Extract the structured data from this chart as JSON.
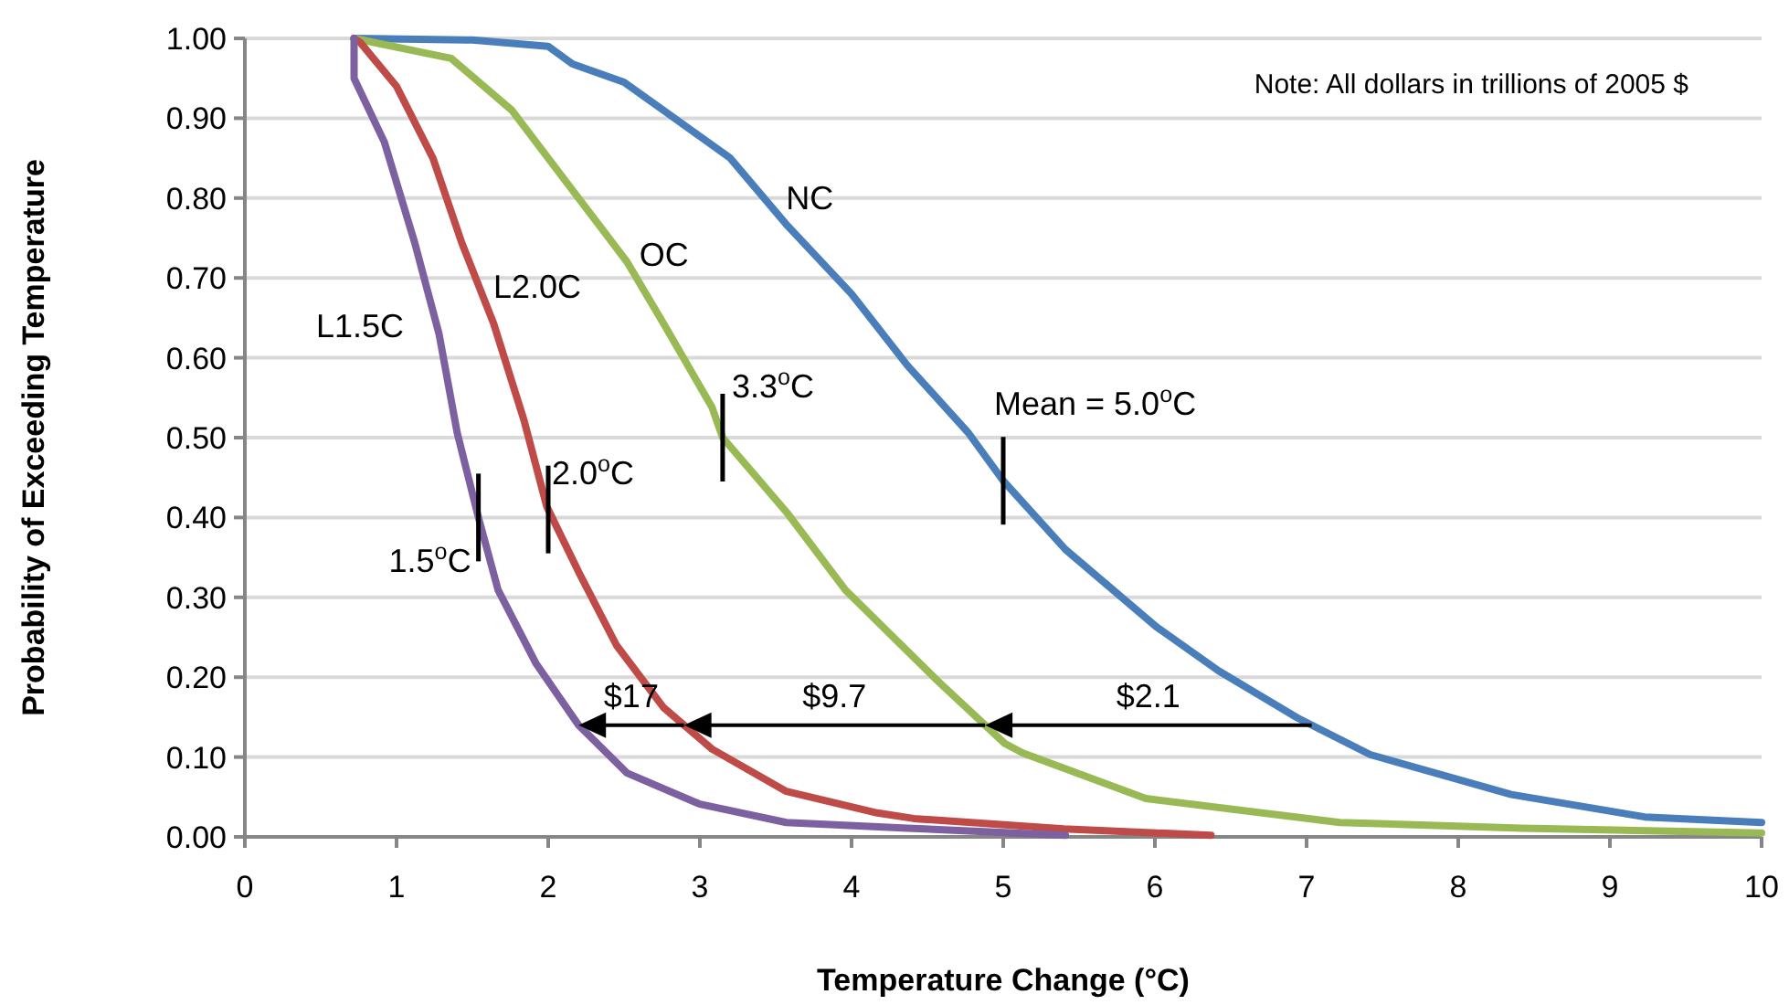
{
  "chart_data": {
    "type": "line",
    "xlabel": "Temperature Change (°C)",
    "ylabel": "Probability of Exceeding Temperature",
    "xlim": [
      0,
      10
    ],
    "ylim": [
      0,
      1
    ],
    "xticks": [
      0,
      1,
      2,
      3,
      4,
      5,
      6,
      7,
      8,
      9,
      10
    ],
    "yticks": [
      {
        "value": 0,
        "label": "0.00"
      },
      {
        "value": 0.1,
        "label": "0.10"
      },
      {
        "value": 0.2,
        "label": "0.20"
      },
      {
        "value": 0.3,
        "label": "0.30"
      },
      {
        "value": 0.4,
        "label": "0.40"
      },
      {
        "value": 0.5,
        "label": "0.50"
      },
      {
        "value": 0.6,
        "label": "0.60"
      },
      {
        "value": 0.7,
        "label": "0.70"
      },
      {
        "value": 0.8,
        "label": "0.80"
      },
      {
        "value": 0.9,
        "label": "0.90"
      },
      {
        "value": 1,
        "label": "1.00"
      }
    ],
    "grid": "y",
    "line_style": "solid",
    "series": [
      {
        "name": "NC",
        "color": "#4a7ebb",
        "x": [
          0.72,
          1.5,
          2.0,
          2.16,
          2.5,
          2.76,
          3.2,
          3.57,
          4.0,
          4.37,
          4.77,
          5.0,
          5.41,
          6.01,
          6.42,
          6.94,
          7.42,
          8.35,
          9.23,
          10.0
        ],
        "values": [
          1.0,
          0.998,
          0.99,
          0.968,
          0.945,
          0.91,
          0.85,
          0.767,
          0.68,
          0.59,
          0.506,
          0.446,
          0.36,
          0.263,
          0.208,
          0.149,
          0.103,
          0.053,
          0.025,
          0.018
        ]
      },
      {
        "name": "OC",
        "color": "#98b954",
        "x": [
          0.72,
          1.36,
          1.76,
          2.16,
          2.52,
          2.76,
          3.08,
          3.15,
          3.57,
          3.96,
          4.57,
          5.01,
          5.13,
          5.94,
          7.22,
          8.42,
          10.0
        ],
        "values": [
          1.0,
          0.975,
          0.91,
          0.81,
          0.72,
          0.643,
          0.538,
          0.5,
          0.407,
          0.309,
          0.195,
          0.117,
          0.105,
          0.048,
          0.018,
          0.011,
          0.005
        ]
      },
      {
        "name": "L2.0C",
        "color": "#be4b48",
        "x": [
          0.72,
          0.76,
          1.0,
          1.24,
          1.43,
          1.64,
          1.84,
          1.99,
          2.2,
          2.45,
          2.76,
          3.08,
          3.57,
          4.17,
          4.41,
          5.4,
          6.37
        ],
        "values": [
          1.0,
          0.995,
          0.94,
          0.85,
          0.744,
          0.643,
          0.522,
          0.414,
          0.332,
          0.24,
          0.162,
          0.11,
          0.057,
          0.03,
          0.023,
          0.01,
          0.002
        ]
      },
      {
        "name": "L1.5C",
        "color": "#7d60a0",
        "x": [
          0.72,
          0.72,
          0.92,
          1.12,
          1.28,
          1.4,
          1.54,
          1.67,
          1.92,
          2.2,
          2.52,
          3.0,
          3.57,
          4.37,
          5.41
        ],
        "values": [
          1.0,
          0.95,
          0.87,
          0.744,
          0.63,
          0.506,
          0.4,
          0.309,
          0.217,
          0.14,
          0.08,
          0.041,
          0.018,
          0.011,
          0.002
        ]
      }
    ],
    "annotations": [
      {
        "text": "Mean = 5.0$^{o}$C",
        "x": 5.0,
        "y": 0.446
      },
      {
        "text": "3.3$^{o}$C",
        "x": 3.15,
        "y": 0.5
      },
      {
        "text": "2.0$^{o}$C",
        "x": 2.0,
        "y": 0.41
      },
      {
        "text": "1.5$^{o}$C",
        "x": 1.54,
        "y": 0.4
      },
      "$2.1",
      "$9.7",
      "$17",
      "Note: All dollars in trillions of 2005 $"
    ]
  }
}
